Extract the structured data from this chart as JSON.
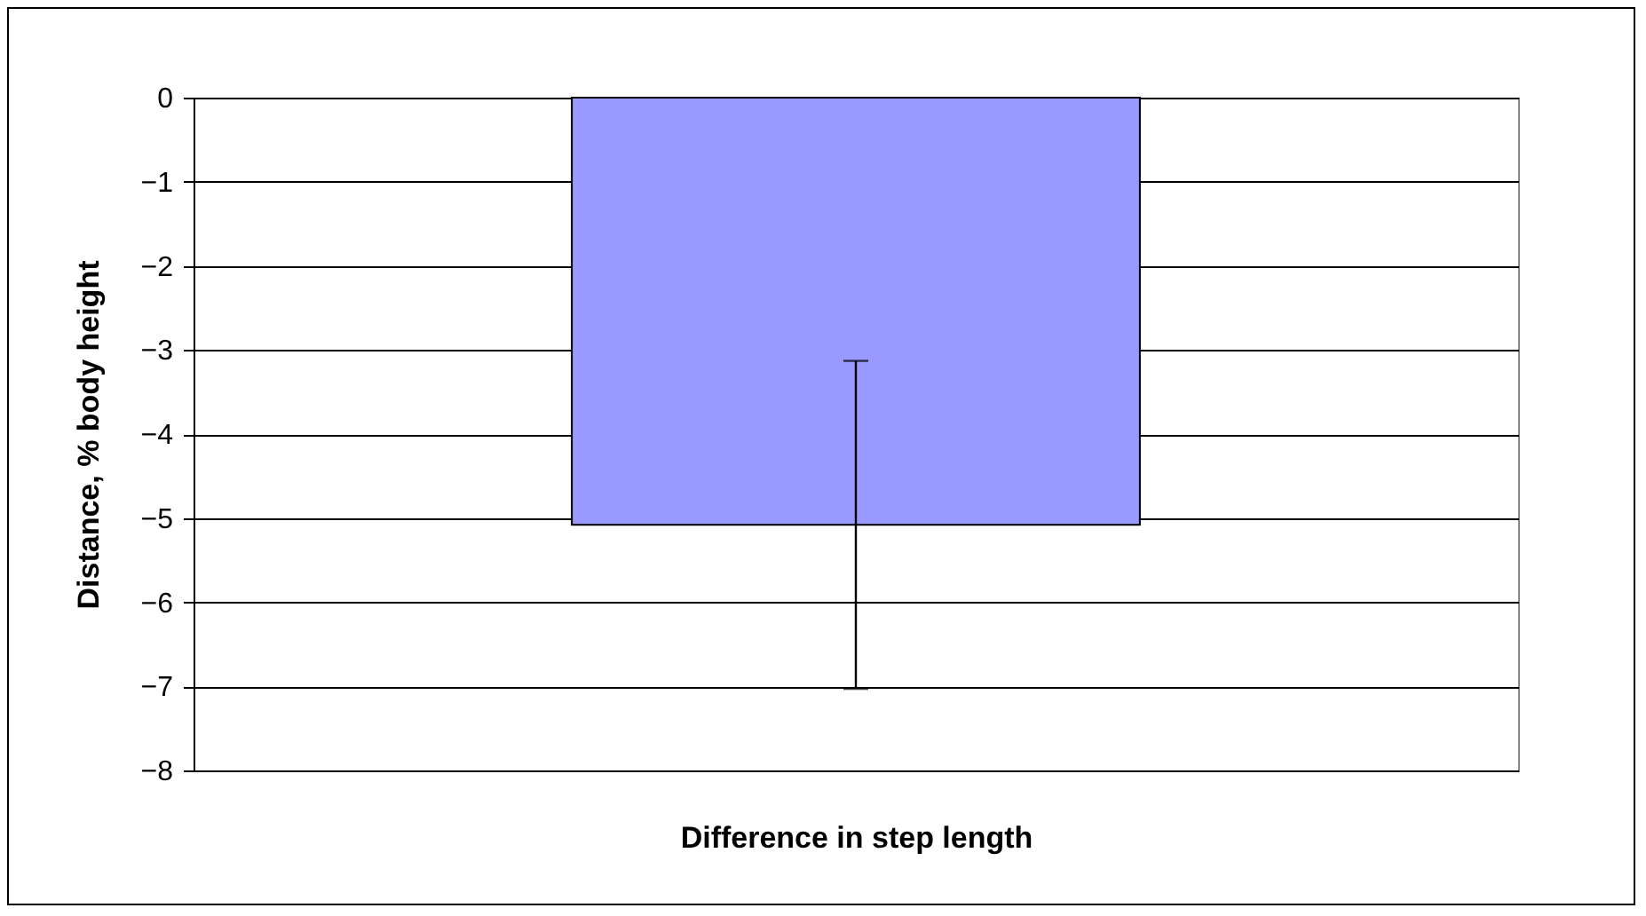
{
  "chart_data": {
    "type": "bar",
    "xlabel": "Difference in step length",
    "ylabel": "Distance, % body height",
    "categories": [
      null
    ],
    "series": [
      {
        "color": "#9999ff",
        "values": [
          -5.08
        ],
        "errors": [
          1.95
        ]
      }
    ],
    "ylim": [
      -8,
      0
    ],
    "yticks": [
      -8,
      -7,
      -6,
      -5,
      -4,
      -3,
      -2,
      -1,
      0
    ],
    "grid": "y"
  }
}
